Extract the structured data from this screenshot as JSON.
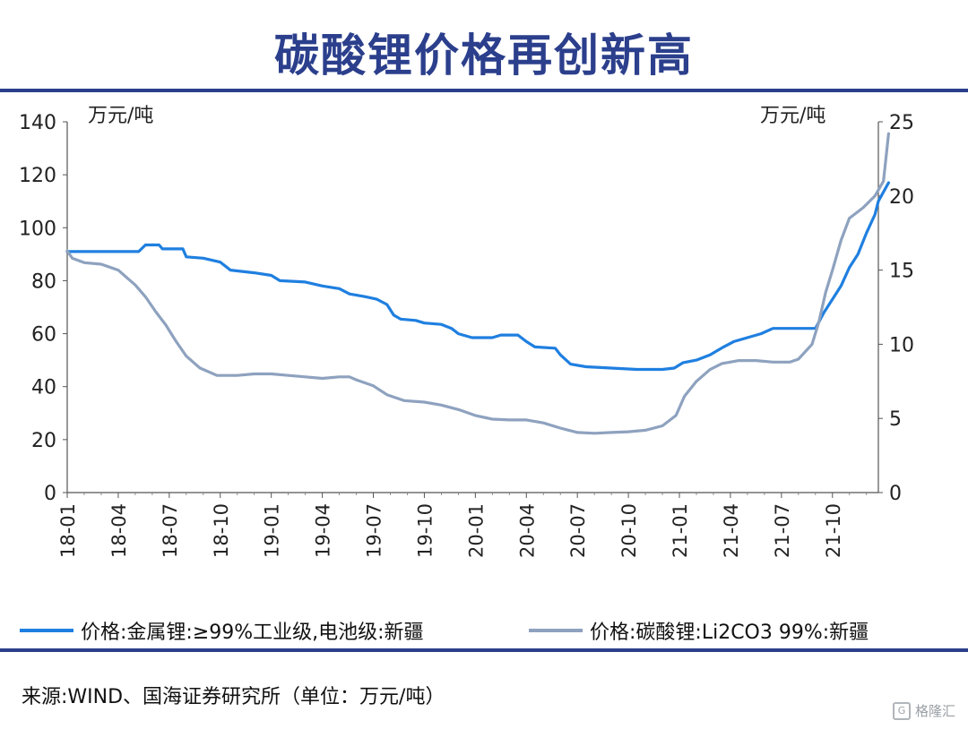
{
  "title": "碳酸锂价格再创新高",
  "source": "来源:WIND、国海证券研究所（单位：万元/吨）",
  "watermark": {
    "text": "格隆汇",
    "logo": "G"
  },
  "colors": {
    "title": "#2b3f8c",
    "series1": "#1f7fe0",
    "series2": "#8ea2bf",
    "axis": "#333333"
  },
  "legend": [
    {
      "label": "价格:金属锂:≥99%工业级,电池级:新疆",
      "color": "#1f7fe0"
    },
    {
      "label": "价格:碳酸锂:Li2CO3 99%:新疆",
      "color": "#8ea2bf"
    }
  ],
  "chart_data": {
    "type": "line",
    "y_left": {
      "label": "万元/吨",
      "min": 0,
      "max": 140,
      "ticks": [
        0,
        20,
        40,
        60,
        80,
        100,
        120,
        140
      ]
    },
    "y_right": {
      "label": "万元/吨",
      "min": 0,
      "max": 25,
      "ticks": [
        0,
        5,
        10,
        15,
        20,
        25
      ]
    },
    "x_ticks": [
      "18-01",
      "18-04",
      "18-07",
      "18-10",
      "19-01",
      "19-04",
      "19-07",
      "19-10",
      "20-01",
      "20-04",
      "20-07",
      "20-10",
      "21-01",
      "21-04",
      "21-07",
      "21-10"
    ],
    "x_range": [
      0,
      47.7
    ],
    "series": [
      {
        "name": "价格:金属锂:≥99%工业级,电池级:新疆",
        "axis": "left",
        "color": "#1f7fe0",
        "points": [
          [
            0,
            91
          ],
          [
            4.2,
            91
          ],
          [
            4.6,
            93.5
          ],
          [
            5.4,
            93.5
          ],
          [
            5.6,
            92
          ],
          [
            6.8,
            92
          ],
          [
            7.0,
            89
          ],
          [
            8.0,
            88.5
          ],
          [
            9.0,
            87
          ],
          [
            9.6,
            84
          ],
          [
            11.0,
            83
          ],
          [
            12.0,
            82
          ],
          [
            12.5,
            80
          ],
          [
            14.0,
            79.5
          ],
          [
            15.0,
            78
          ],
          [
            16.0,
            77
          ],
          [
            16.6,
            75
          ],
          [
            17.5,
            74
          ],
          [
            18.2,
            73
          ],
          [
            18.8,
            71
          ],
          [
            19.2,
            67
          ],
          [
            19.6,
            65.5
          ],
          [
            20.5,
            65
          ],
          [
            21.0,
            64
          ],
          [
            22.0,
            63.5
          ],
          [
            22.6,
            62
          ],
          [
            23.0,
            60
          ],
          [
            23.8,
            58.5
          ],
          [
            25.0,
            58.5
          ],
          [
            25.5,
            59.5
          ],
          [
            26.5,
            59.5
          ],
          [
            27.0,
            57
          ],
          [
            27.5,
            55
          ],
          [
            28.7,
            54.5
          ],
          [
            29.0,
            52
          ],
          [
            29.6,
            48.5
          ],
          [
            30.5,
            47.5
          ],
          [
            32.0,
            47
          ],
          [
            33.5,
            46.5
          ],
          [
            35.0,
            46.5
          ],
          [
            35.7,
            47
          ],
          [
            36.2,
            49
          ],
          [
            37.0,
            50
          ],
          [
            37.8,
            52
          ],
          [
            38.6,
            55
          ],
          [
            39.2,
            57
          ],
          [
            40.0,
            58.5
          ],
          [
            40.8,
            60
          ],
          [
            41.5,
            62
          ],
          [
            43.0,
            62
          ],
          [
            44.0,
            62
          ],
          [
            44.5,
            68
          ],
          [
            45.0,
            73
          ],
          [
            45.5,
            78
          ],
          [
            46.0,
            85
          ],
          [
            46.5,
            90
          ],
          [
            47.0,
            98
          ],
          [
            47.5,
            105
          ],
          [
            47.7,
            110
          ],
          [
            48.3,
            117
          ]
        ]
      },
      {
        "name": "价格:碳酸锂:Li2CO3 99%:新疆",
        "axis": "right",
        "color": "#8ea2bf",
        "points": [
          [
            0,
            16.3
          ],
          [
            0.3,
            15.8
          ],
          [
            1.0,
            15.5
          ],
          [
            2.0,
            15.4
          ],
          [
            3.0,
            15.0
          ],
          [
            3.5,
            14.5
          ],
          [
            4.0,
            14.0
          ],
          [
            4.6,
            13.2
          ],
          [
            5.2,
            12.2
          ],
          [
            5.8,
            11.3
          ],
          [
            6.4,
            10.2
          ],
          [
            7.0,
            9.2
          ],
          [
            7.8,
            8.4
          ],
          [
            8.8,
            7.9
          ],
          [
            10.0,
            7.9
          ],
          [
            11.0,
            8.0
          ],
          [
            12.0,
            8.0
          ],
          [
            13.0,
            7.9
          ],
          [
            14.0,
            7.8
          ],
          [
            15.0,
            7.7
          ],
          [
            16.0,
            7.8
          ],
          [
            16.6,
            7.8
          ],
          [
            17.0,
            7.6
          ],
          [
            18.0,
            7.2
          ],
          [
            18.8,
            6.6
          ],
          [
            19.8,
            6.2
          ],
          [
            21.0,
            6.1
          ],
          [
            22.0,
            5.9
          ],
          [
            23.0,
            5.6
          ],
          [
            24.0,
            5.2
          ],
          [
            25.0,
            4.95
          ],
          [
            26.0,
            4.9
          ],
          [
            27.0,
            4.9
          ],
          [
            28.0,
            4.7
          ],
          [
            29.0,
            4.35
          ],
          [
            30.0,
            4.05
          ],
          [
            31.0,
            4.0
          ],
          [
            32.0,
            4.05
          ],
          [
            33.0,
            4.1
          ],
          [
            34.0,
            4.2
          ],
          [
            35.0,
            4.5
          ],
          [
            35.8,
            5.2
          ],
          [
            36.3,
            6.5
          ],
          [
            37.0,
            7.5
          ],
          [
            37.8,
            8.3
          ],
          [
            38.5,
            8.7
          ],
          [
            39.5,
            8.9
          ],
          [
            40.5,
            8.9
          ],
          [
            41.5,
            8.8
          ],
          [
            42.5,
            8.8
          ],
          [
            43.0,
            9.0
          ],
          [
            43.8,
            10.0
          ],
          [
            44.2,
            11.5
          ],
          [
            44.6,
            13.5
          ],
          [
            45.0,
            15.0
          ],
          [
            45.5,
            17.0
          ],
          [
            46.0,
            18.5
          ],
          [
            46.8,
            19.2
          ],
          [
            47.5,
            20.0
          ],
          [
            48.0,
            21.0
          ],
          [
            48.3,
            24.2
          ]
        ]
      }
    ]
  }
}
